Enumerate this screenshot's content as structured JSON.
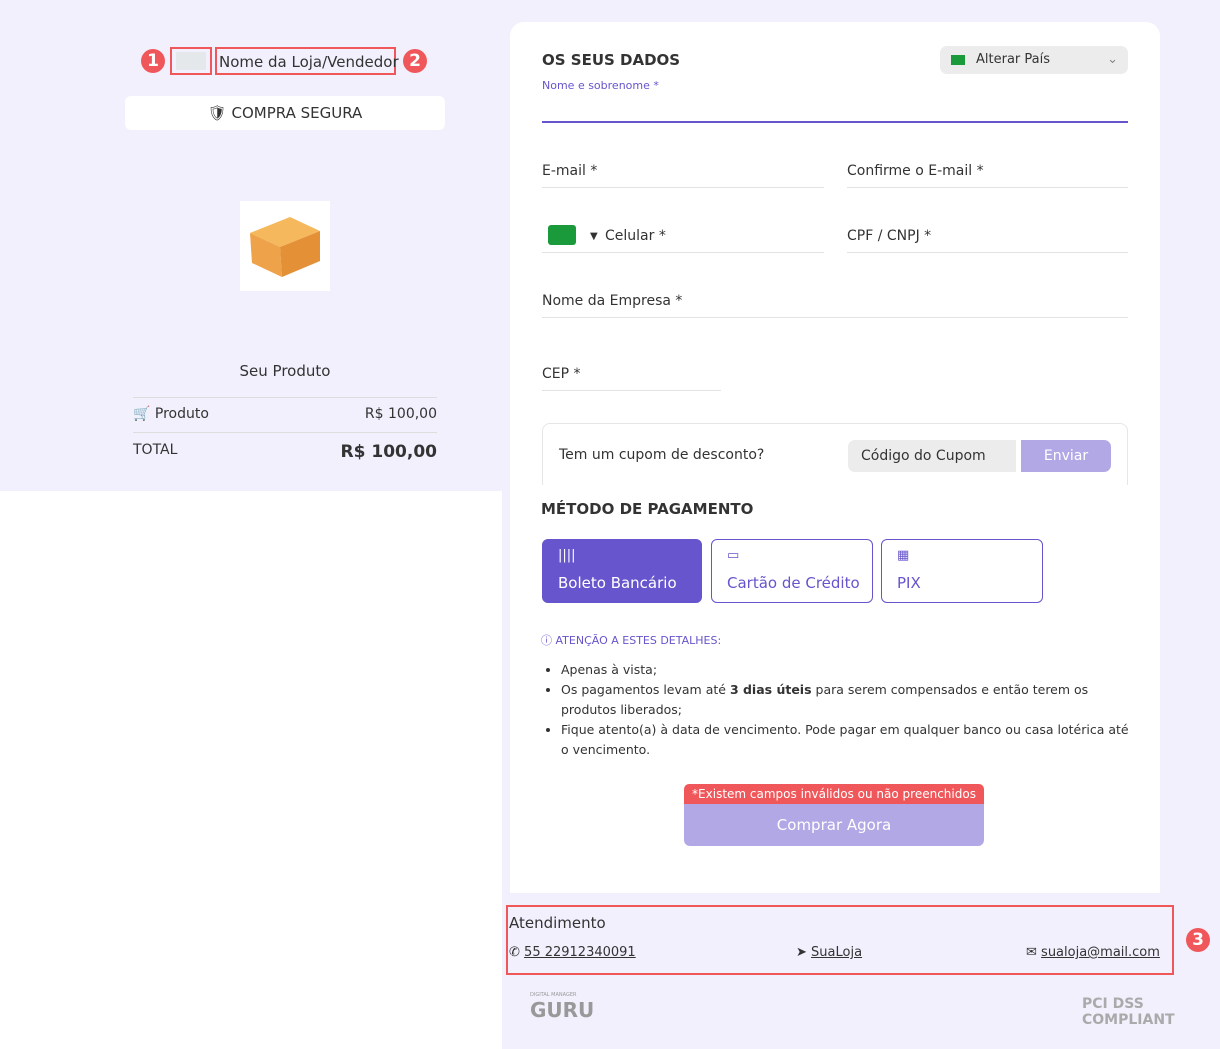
{
  "store": {
    "name": "Nome da Loja/Vendedor",
    "secure_label": "COMPRA SEGURA"
  },
  "annotations": [
    "1",
    "2",
    "3"
  ],
  "product": {
    "name": "Seu Produto",
    "line_label": "Produto",
    "line_price": "R$ 100,00",
    "total_label": "TOTAL",
    "total_value": "R$ 100,00"
  },
  "form": {
    "title": "OS SEUS DADOS",
    "country_select": "Alterar País",
    "fields": {
      "name": "Nome e sobrenome *",
      "email": "E-mail *",
      "email_confirm": "Confirme o E-mail *",
      "phone": "Celular *",
      "doc": "CPF / CNPJ *",
      "company": "Nome da Empresa *",
      "cep": "CEP *"
    }
  },
  "coupon": {
    "question": "Tem um cupom de desconto?",
    "placeholder": "Código do Cupom",
    "submit": "Enviar"
  },
  "payment": {
    "title": "MÉTODO DE PAGAMENTO",
    "methods": [
      {
        "label": "Boleto Bancário",
        "icon": "barcode-icon",
        "selected": true
      },
      {
        "label": "Cartão de Crédito",
        "icon": "credit-card-icon"
      },
      {
        "label": "PIX",
        "icon": "qr-code-icon"
      }
    ],
    "notice_title": "ATENÇÃO A ESTES DETALHES:",
    "notes": [
      "Apenas à vista;",
      "Os pagamentos levam até ",
      "3 dias úteis",
      " para serem compensados e então terem os produtos liberados;",
      "Fique atento(a) à data de vencimento. Pode pagar em qualquer banco ou casa lotérica até o vencimento."
    ],
    "error": "*Existem campos inválidos ou não preenchidos",
    "buy": "Comprar Agora"
  },
  "support": {
    "title": "Atendimento",
    "phone": "55 22912340091",
    "telegram": "SuaLoja",
    "email": "sualoja@mail.com"
  },
  "logos": {
    "guru": "GURU",
    "guru_small": "DIGITAL MANAGER",
    "pci": "PCI DSS COMPLIANT"
  },
  "colors": {
    "accent": "#6655cc",
    "annotation": "#f0575a",
    "background": "#f2f0fd"
  }
}
